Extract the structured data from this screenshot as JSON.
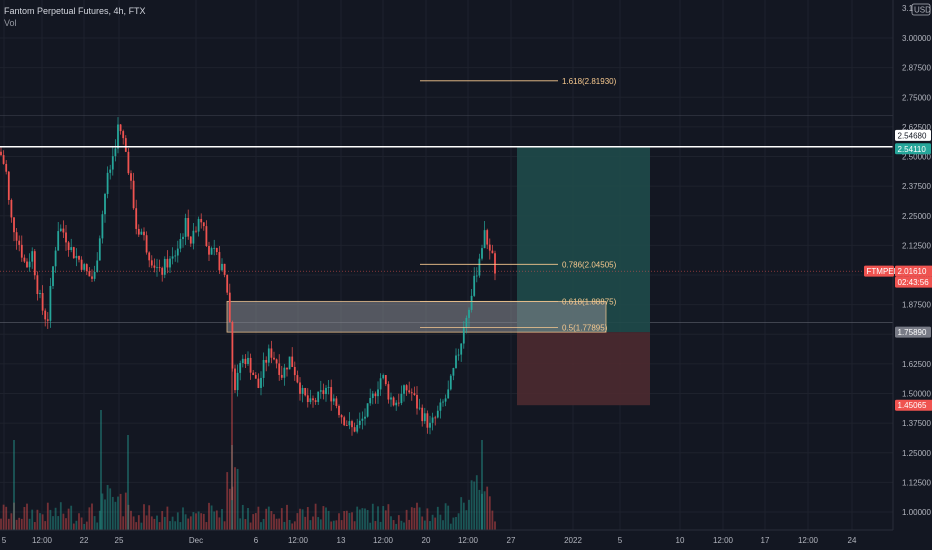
{
  "legend": {
    "symbol": "Fantom Perpetual Futures, 4h, FTX",
    "vol_label": "Vol"
  },
  "currency": "USD",
  "price_scale_top": "3.1",
  "colors": {
    "up": "#26a69a",
    "down": "#ef5350",
    "resistance": "#ffffff",
    "fib": "#f7c98f",
    "profit_zone": "#1f4a4a",
    "loss_zone": "#4c2a30",
    "bg": "#131722",
    "grid": "#1e222d"
  },
  "chart_data": {
    "type": "candlestick",
    "y_range": [
      0.95,
      3.12
    ],
    "y_ticks": [
      "1.00000",
      "1.12500",
      "1.25000",
      "1.37500",
      "1.50000",
      "1.62500",
      "1.75000",
      "1.87500",
      "2.00000",
      "2.12500",
      "2.25000",
      "2.37500",
      "2.50000",
      "2.62500",
      "2.75000",
      "2.87500",
      "3.00000"
    ],
    "x_ticks": [
      "5",
      "12:00",
      "22",
      "25",
      "Dec",
      "6",
      "12:00",
      "13",
      "12:00",
      "20",
      "12:00",
      "27",
      "2022",
      "5",
      "10",
      "12:00",
      "17",
      "12:00",
      "24"
    ],
    "price_tags": [
      {
        "label": "2.54680",
        "style": "outline"
      },
      {
        "label": "2.54110",
        "style": "teal"
      },
      {
        "label": "FTMPERP",
        "style": "red"
      },
      {
        "label": "2.01610",
        "style": "red"
      },
      {
        "label": "02:43:56",
        "style": "red"
      },
      {
        "label": "1.75890",
        "style": "gray"
      },
      {
        "label": "1.45065",
        "style": "red"
      }
    ],
    "fib_levels": [
      {
        "label": "1.618(2.81930)",
        "value": 2.8193
      },
      {
        "label": "0.786(2.04505)",
        "value": 2.04505
      },
      {
        "label": "0.618(1.88875)",
        "value": 1.88875
      },
      {
        "label": "0.5(1.77895)",
        "value": 1.77895
      }
    ],
    "resistance_level": 2.5411,
    "last_price": 2.0161,
    "order_block": {
      "top": 1.8888,
      "bottom": 1.7589
    },
    "position": {
      "entry": 1.7589,
      "target": 2.5411,
      "stop": 1.45065
    },
    "close_path": [
      [
        0,
        2.52
      ],
      [
        6,
        2.44
      ],
      [
        10,
        2.25
      ],
      [
        18,
        2.15
      ],
      [
        26,
        2.03
      ],
      [
        32,
        2.1
      ],
      [
        38,
        1.93
      ],
      [
        44,
        1.83
      ],
      [
        48,
        1.82
      ],
      [
        52,
        2.0
      ],
      [
        58,
        2.2
      ],
      [
        64,
        2.18
      ],
      [
        72,
        2.1
      ],
      [
        80,
        2.06
      ],
      [
        88,
        2.0
      ],
      [
        94,
        1.98
      ],
      [
        100,
        2.18
      ],
      [
        106,
        2.38
      ],
      [
        112,
        2.48
      ],
      [
        118,
        2.62
      ],
      [
        124,
        2.56
      ],
      [
        130,
        2.42
      ],
      [
        136,
        2.2
      ],
      [
        142,
        2.18
      ],
      [
        148,
        2.1
      ],
      [
        154,
        2.05
      ],
      [
        160,
        2.0
      ],
      [
        166,
        2.05
      ],
      [
        172,
        2.06
      ],
      [
        178,
        2.12
      ],
      [
        186,
        2.22
      ],
      [
        192,
        2.13
      ],
      [
        198,
        2.25
      ],
      [
        204,
        2.23
      ],
      [
        208,
        2.1
      ],
      [
        216,
        2.08
      ],
      [
        224,
        2.0
      ],
      [
        228,
        1.92
      ],
      [
        234,
        1.52
      ],
      [
        240,
        1.63
      ],
      [
        246,
        1.65
      ],
      [
        252,
        1.6
      ],
      [
        258,
        1.52
      ],
      [
        264,
        1.62
      ],
      [
        270,
        1.68
      ],
      [
        276,
        1.64
      ],
      [
        282,
        1.58
      ],
      [
        290,
        1.65
      ],
      [
        296,
        1.58
      ],
      [
        302,
        1.5
      ],
      [
        310,
        1.45
      ],
      [
        318,
        1.48
      ],
      [
        326,
        1.52
      ],
      [
        334,
        1.48
      ],
      [
        340,
        1.42
      ],
      [
        346,
        1.38
      ],
      [
        352,
        1.35
      ],
      [
        358,
        1.36
      ],
      [
        364,
        1.4
      ],
      [
        370,
        1.45
      ],
      [
        376,
        1.52
      ],
      [
        382,
        1.58
      ],
      [
        388,
        1.5
      ],
      [
        394,
        1.46
      ],
      [
        400,
        1.48
      ],
      [
        406,
        1.52
      ],
      [
        412,
        1.5
      ],
      [
        418,
        1.44
      ],
      [
        424,
        1.4
      ],
      [
        430,
        1.36
      ],
      [
        436,
        1.4
      ],
      [
        442,
        1.45
      ],
      [
        448,
        1.5
      ],
      [
        454,
        1.6
      ],
      [
        460,
        1.7
      ],
      [
        466,
        1.82
      ],
      [
        472,
        1.92
      ],
      [
        478,
        2.05
      ],
      [
        484,
        2.17
      ],
      [
        490,
        2.12
      ],
      [
        494,
        2.04
      ],
      [
        496,
        2.016
      ]
    ]
  }
}
